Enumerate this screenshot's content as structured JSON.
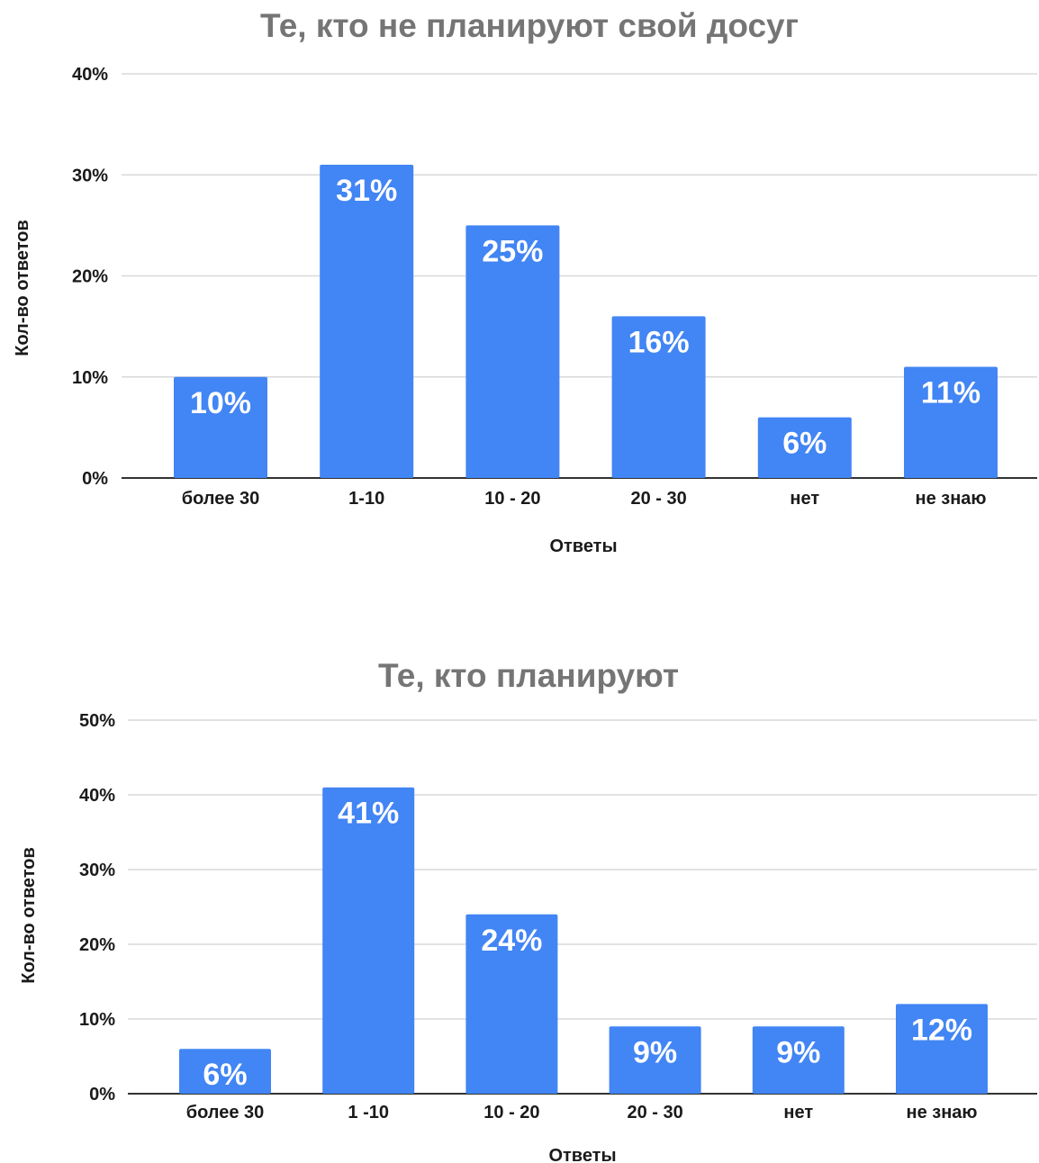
{
  "colors": {
    "bar": "#4285f4",
    "title": "#757575",
    "text": "#1a1a1a",
    "grid": "#d9d9d9",
    "data_label": "#ffffff"
  },
  "chart_data": [
    {
      "type": "bar",
      "title": "Те, кто не планируют свой досуг",
      "xlabel": "Ответы",
      "ylabel": "Кол-во ответов",
      "categories": [
        "более 30",
        "1-10",
        "10 - 20",
        "20 - 30",
        "нет",
        "не знаю"
      ],
      "values": [
        10,
        31,
        25,
        16,
        6,
        11
      ],
      "data_labels": [
        "10%",
        "31%",
        "25%",
        "16%",
        "6%",
        "11%"
      ],
      "ylim": [
        0,
        40
      ],
      "yticks": [
        0,
        10,
        20,
        30,
        40
      ],
      "ytick_labels": [
        "0%",
        "10%",
        "20%",
        "30%",
        "40%"
      ],
      "grid": true,
      "legend": "none"
    },
    {
      "type": "bar",
      "title": "Те, кто планируют",
      "xlabel": "Ответы",
      "ylabel": "Кол-во ответов",
      "categories": [
        "более 30",
        "1 -10",
        "10 - 20",
        "20 - 30",
        "нет",
        "не знаю"
      ],
      "values": [
        6,
        41,
        24,
        9,
        9,
        12
      ],
      "data_labels": [
        "6%",
        "41%",
        "24%",
        "9%",
        "9%",
        "12%"
      ],
      "ylim": [
        0,
        50
      ],
      "yticks": [
        0,
        10,
        20,
        30,
        40,
        50
      ],
      "ytick_labels": [
        "0%",
        "10%",
        "20%",
        "30%",
        "40%",
        "50%"
      ],
      "grid": true,
      "legend": "none"
    }
  ]
}
